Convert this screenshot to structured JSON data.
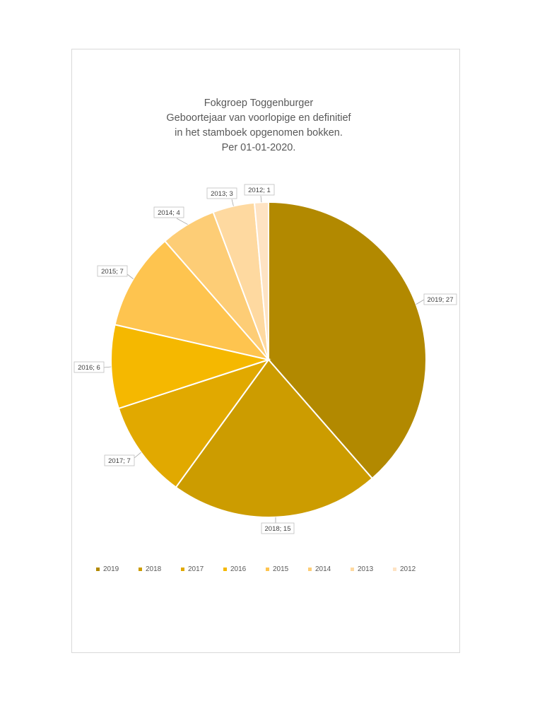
{
  "chart_data": {
    "type": "pie",
    "title_lines": [
      "Fokgroep Toggenburger",
      "Geboortejaar van voorlopige en definitief",
      "in het stamboek opgenomen bokken.",
      "Per 01-01-2020."
    ],
    "slices": [
      {
        "label": "2019",
        "value": 27,
        "color": "#b28900",
        "data_label": "2019; 27"
      },
      {
        "label": "2018",
        "value": 15,
        "color": "#cc9c00",
        "data_label": "2018; 15"
      },
      {
        "label": "2017",
        "value": 7,
        "color": "#e1a900",
        "data_label": "2017; 7"
      },
      {
        "label": "2016",
        "value": 6,
        "color": "#f5b800",
        "data_label": "2016; 6"
      },
      {
        "label": "2015",
        "value": 7,
        "color": "#fec44f",
        "data_label": "2015; 7"
      },
      {
        "label": "2014",
        "value": 4,
        "color": "#fdcd76",
        "data_label": "2014; 4"
      },
      {
        "label": "2013",
        "value": 3,
        "color": "#fed9a0",
        "data_label": "2013; 3"
      },
      {
        "label": "2012",
        "value": 1,
        "color": "#fee3c3",
        "data_label": "2012; 1"
      }
    ],
    "legend_position": "bottom"
  }
}
